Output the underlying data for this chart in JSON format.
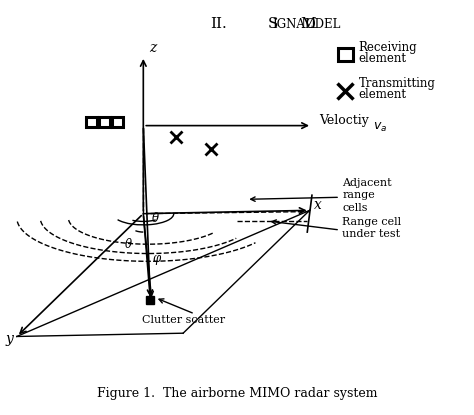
{
  "title": "II.     Signal Model",
  "caption": "Figure 1.  The airborne MIMO radar system",
  "bg_color": "#ffffff",
  "line_color": "#000000",
  "angles": {
    "theta_upper": "θ",
    "theta_lower": "θ",
    "phi": "φ"
  }
}
